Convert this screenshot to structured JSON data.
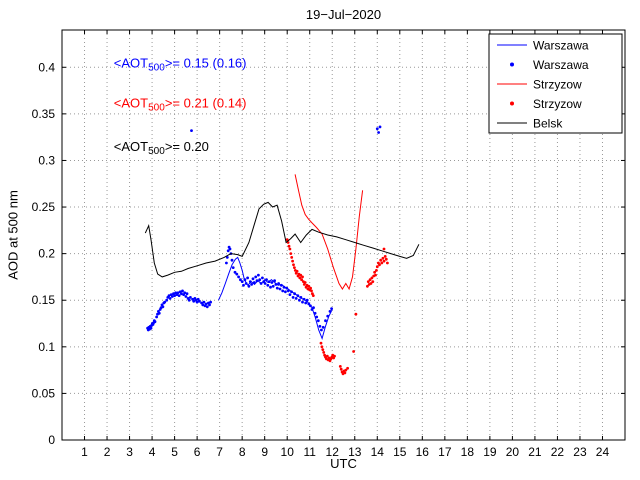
{
  "chart_data": {
    "type": "line+scatter",
    "title": "19−Jul−2020",
    "xlabel": "UTC",
    "ylabel": "AOD at 500 nm",
    "xlim": [
      0,
      25
    ],
    "ylim": [
      0,
      0.44
    ],
    "xticks": [
      1,
      2,
      3,
      4,
      5,
      6,
      7,
      8,
      9,
      10,
      11,
      12,
      13,
      14,
      15,
      16,
      17,
      18,
      19,
      20,
      21,
      22,
      23,
      24
    ],
    "yticks": [
      0,
      0.05,
      0.1,
      0.15,
      0.2,
      0.25,
      0.3,
      0.35,
      0.4
    ],
    "grid": true,
    "colors": {
      "warszawa": "#0000ff",
      "strzyzow": "#ff0000",
      "belsk": "#000000"
    },
    "legend_position": "top-right",
    "legend": [
      {
        "label": "Warszawa",
        "color": "#0000ff",
        "marker": "line"
      },
      {
        "label": "Warszawa",
        "color": "#0000ff",
        "marker": "dot"
      },
      {
        "label": "Strzyzow",
        "color": "#ff0000",
        "marker": "line"
      },
      {
        "label": "Strzyzow",
        "color": "#ff0000",
        "marker": "dot"
      },
      {
        "label": "Belsk",
        "color": "#000000",
        "marker": "line"
      }
    ],
    "annotations": [
      {
        "pre": "<AOT",
        "sub": "500",
        "post": ">= 0.15 (0.16)",
        "color": "#0000ff",
        "x": 2.3,
        "y": 0.4
      },
      {
        "pre": "<AOT",
        "sub": "500",
        "post": ">= 0.21 (0.14)",
        "color": "#ff0000",
        "x": 2.3,
        "y": 0.357
      },
      {
        "pre": "<AOT",
        "sub": "500",
        "post": ">= 0.20",
        "color": "#000000",
        "x": 2.3,
        "y": 0.31
      }
    ],
    "series": [
      {
        "name": "Warszawa",
        "type": "line",
        "color": "#0000ff",
        "x": [
          6.95,
          7.1,
          7.25,
          7.4,
          7.55,
          7.7,
          7.8,
          7.9,
          8.0,
          8.1,
          8.25,
          8.4,
          8.55,
          8.7,
          8.85,
          9.0,
          9.15,
          9.3,
          9.45,
          9.6,
          9.75,
          9.9,
          10.05,
          10.2,
          10.35,
          10.5,
          10.65,
          10.8,
          10.95,
          11.1,
          11.25,
          11.4,
          11.55,
          11.7,
          11.85,
          12.0
        ],
        "y": [
          0.15,
          0.158,
          0.168,
          0.178,
          0.188,
          0.194,
          0.196,
          0.19,
          0.182,
          0.172,
          0.166,
          0.17,
          0.167,
          0.171,
          0.168,
          0.172,
          0.169,
          0.172,
          0.169,
          0.166,
          0.167,
          0.164,
          0.162,
          0.159,
          0.157,
          0.154,
          0.152,
          0.15,
          0.147,
          0.142,
          0.131,
          0.118,
          0.109,
          0.122,
          0.133,
          0.14
        ]
      },
      {
        "name": "Warszawa",
        "type": "scatter",
        "color": "#0000ff",
        "x": [
          3.8,
          3.83,
          3.86,
          3.89,
          3.92,
          3.95,
          3.98,
          4.01,
          4.04,
          4.07,
          4.1,
          4.13,
          4.2,
          4.24,
          4.28,
          4.32,
          4.36,
          4.4,
          4.44,
          4.48,
          4.52,
          4.56,
          4.65,
          4.7,
          4.75,
          4.8,
          4.85,
          4.9,
          4.95,
          5.0,
          5.05,
          5.1,
          5.15,
          5.2,
          5.25,
          5.3,
          5.35,
          5.4,
          5.45,
          5.5,
          5.55,
          5.6,
          5.65,
          5.7,
          5.75,
          5.8,
          5.85,
          5.9,
          5.95,
          6.0,
          6.05,
          6.1,
          6.2,
          6.25,
          6.3,
          6.35,
          6.4,
          6.45,
          6.5,
          6.55,
          6.6,
          7.3,
          7.34,
          7.38,
          7.42,
          7.46,
          7.5,
          7.55,
          7.6,
          7.68,
          7.76,
          7.84,
          7.92,
          8.0,
          8.06,
          8.12,
          8.18,
          8.24,
          8.3,
          8.36,
          8.42,
          8.48,
          8.54,
          8.6,
          8.66,
          8.72,
          8.78,
          8.84,
          8.9,
          8.96,
          9.02,
          9.08,
          9.14,
          9.2,
          9.26,
          9.32,
          9.38,
          9.44,
          9.5,
          9.56,
          9.62,
          9.68,
          9.74,
          9.8,
          9.86,
          9.92,
          9.98,
          10.05,
          10.12,
          10.19,
          10.26,
          10.33,
          10.4,
          10.47,
          10.54,
          10.61,
          10.68,
          10.75,
          10.82,
          10.89,
          10.96,
          11.03,
          11.1,
          11.17,
          11.24,
          11.31,
          11.38,
          11.45,
          11.52,
          11.6,
          11.7,
          11.8,
          11.9,
          11.97,
          14.0,
          14.06,
          14.12
        ],
        "y": [
          0.12,
          0.118,
          0.121,
          0.119,
          0.122,
          0.12,
          0.123,
          0.125,
          0.124,
          0.126,
          0.128,
          0.127,
          0.132,
          0.135,
          0.138,
          0.136,
          0.14,
          0.142,
          0.145,
          0.143,
          0.147,
          0.148,
          0.15,
          0.153,
          0.155,
          0.152,
          0.156,
          0.154,
          0.157,
          0.155,
          0.158,
          0.156,
          0.158,
          0.155,
          0.159,
          0.157,
          0.16,
          0.156,
          0.158,
          0.154,
          0.157,
          0.152,
          0.15,
          0.153,
          0.332,
          0.151,
          0.149,
          0.152,
          0.15,
          0.148,
          0.151,
          0.149,
          0.147,
          0.145,
          0.148,
          0.144,
          0.146,
          0.143,
          0.147,
          0.145,
          0.148,
          0.19,
          0.196,
          0.203,
          0.207,
          0.205,
          0.2,
          0.193,
          0.185,
          0.18,
          0.178,
          0.175,
          0.172,
          0.17,
          0.166,
          0.172,
          0.168,
          0.174,
          0.165,
          0.17,
          0.167,
          0.173,
          0.169,
          0.175,
          0.171,
          0.177,
          0.172,
          0.168,
          0.174,
          0.17,
          0.168,
          0.172,
          0.166,
          0.17,
          0.164,
          0.169,
          0.165,
          0.171,
          0.167,
          0.163,
          0.168,
          0.162,
          0.166,
          0.16,
          0.164,
          0.159,
          0.163,
          0.16,
          0.156,
          0.159,
          0.153,
          0.157,
          0.152,
          0.155,
          0.15,
          0.153,
          0.148,
          0.151,
          0.147,
          0.15,
          0.146,
          0.144,
          0.14,
          0.142,
          0.136,
          0.132,
          0.128,
          0.122,
          0.118,
          0.121,
          0.128,
          0.133,
          0.138,
          0.141,
          0.334,
          0.33,
          0.336
        ]
      },
      {
        "name": "Strzyzow",
        "type": "line",
        "color": "#ff0000",
        "x": [
          10.35,
          10.5,
          10.65,
          10.8,
          10.95,
          11.1,
          11.3,
          11.55,
          11.8,
          12.05,
          12.3,
          12.45,
          12.6,
          12.75,
          12.9,
          13.05,
          13.2,
          13.35
        ],
        "y": [
          0.285,
          0.268,
          0.252,
          0.242,
          0.237,
          0.233,
          0.228,
          0.221,
          0.205,
          0.185,
          0.168,
          0.162,
          0.168,
          0.162,
          0.175,
          0.205,
          0.24,
          0.268
        ]
      },
      {
        "name": "Strzyzow",
        "type": "scatter",
        "color": "#ff0000",
        "x": [
          10.0,
          10.04,
          10.08,
          10.12,
          10.16,
          10.2,
          10.24,
          10.28,
          10.32,
          10.36,
          10.4,
          10.44,
          10.48,
          10.52,
          10.56,
          10.6,
          10.64,
          10.68,
          10.72,
          10.76,
          10.8,
          10.84,
          10.88,
          10.92,
          10.96,
          11.0,
          11.04,
          11.08,
          11.12,
          11.16,
          11.5,
          11.54,
          11.58,
          11.62,
          11.66,
          11.7,
          11.74,
          11.78,
          11.82,
          11.86,
          11.9,
          11.94,
          11.98,
          12.02,
          12.06,
          12.1,
          12.36,
          12.4,
          12.44,
          12.48,
          12.52,
          12.56,
          12.6,
          12.68,
          12.95,
          13.05,
          13.56,
          13.6,
          13.64,
          13.68,
          13.72,
          13.76,
          13.8,
          13.84,
          13.88,
          13.92,
          13.96,
          14.0,
          14.05,
          14.1,
          14.15,
          14.2,
          14.25,
          14.3,
          14.35,
          14.4,
          14.45,
          14.3
        ],
        "y": [
          0.215,
          0.212,
          0.208,
          0.205,
          0.2,
          0.196,
          0.192,
          0.188,
          0.185,
          0.182,
          0.179,
          0.181,
          0.176,
          0.178,
          0.174,
          0.177,
          0.172,
          0.175,
          0.17,
          0.167,
          0.169,
          0.164,
          0.166,
          0.162,
          0.165,
          0.161,
          0.163,
          0.16,
          0.157,
          0.155,
          0.104,
          0.1,
          0.097,
          0.094,
          0.091,
          0.089,
          0.087,
          0.09,
          0.086,
          0.088,
          0.085,
          0.087,
          0.089,
          0.091,
          0.088,
          0.09,
          0.079,
          0.076,
          0.073,
          0.071,
          0.074,
          0.072,
          0.075,
          0.077,
          0.095,
          0.135,
          0.165,
          0.17,
          0.167,
          0.172,
          0.168,
          0.174,
          0.17,
          0.176,
          0.18,
          0.177,
          0.182,
          0.186,
          0.19,
          0.188,
          0.193,
          0.19,
          0.195,
          0.192,
          0.197,
          0.194,
          0.19,
          0.205
        ]
      },
      {
        "name": "Belsk",
        "type": "line",
        "color": "#000000",
        "x": [
          3.7,
          3.85,
          3.95,
          4.1,
          4.25,
          4.45,
          4.7,
          5.0,
          5.3,
          5.6,
          6.0,
          6.4,
          6.8,
          7.2,
          7.5,
          7.8,
          8.0,
          8.3,
          8.55,
          8.75,
          8.95,
          9.15,
          9.35,
          9.55,
          9.75,
          9.95,
          10.15,
          10.35,
          10.6,
          10.85,
          11.1,
          11.4,
          11.8,
          12.2,
          12.6,
          13.0,
          13.4,
          13.8,
          14.2,
          14.6,
          15.0,
          15.3,
          15.6,
          15.85
        ],
        "y": [
          0.222,
          0.23,
          0.215,
          0.19,
          0.178,
          0.175,
          0.177,
          0.18,
          0.181,
          0.184,
          0.187,
          0.19,
          0.192,
          0.196,
          0.2,
          0.199,
          0.197,
          0.212,
          0.232,
          0.248,
          0.253,
          0.255,
          0.25,
          0.252,
          0.235,
          0.212,
          0.216,
          0.221,
          0.212,
          0.22,
          0.226,
          0.223,
          0.22,
          0.218,
          0.215,
          0.212,
          0.209,
          0.206,
          0.203,
          0.2,
          0.197,
          0.195,
          0.198,
          0.21
        ]
      }
    ]
  }
}
